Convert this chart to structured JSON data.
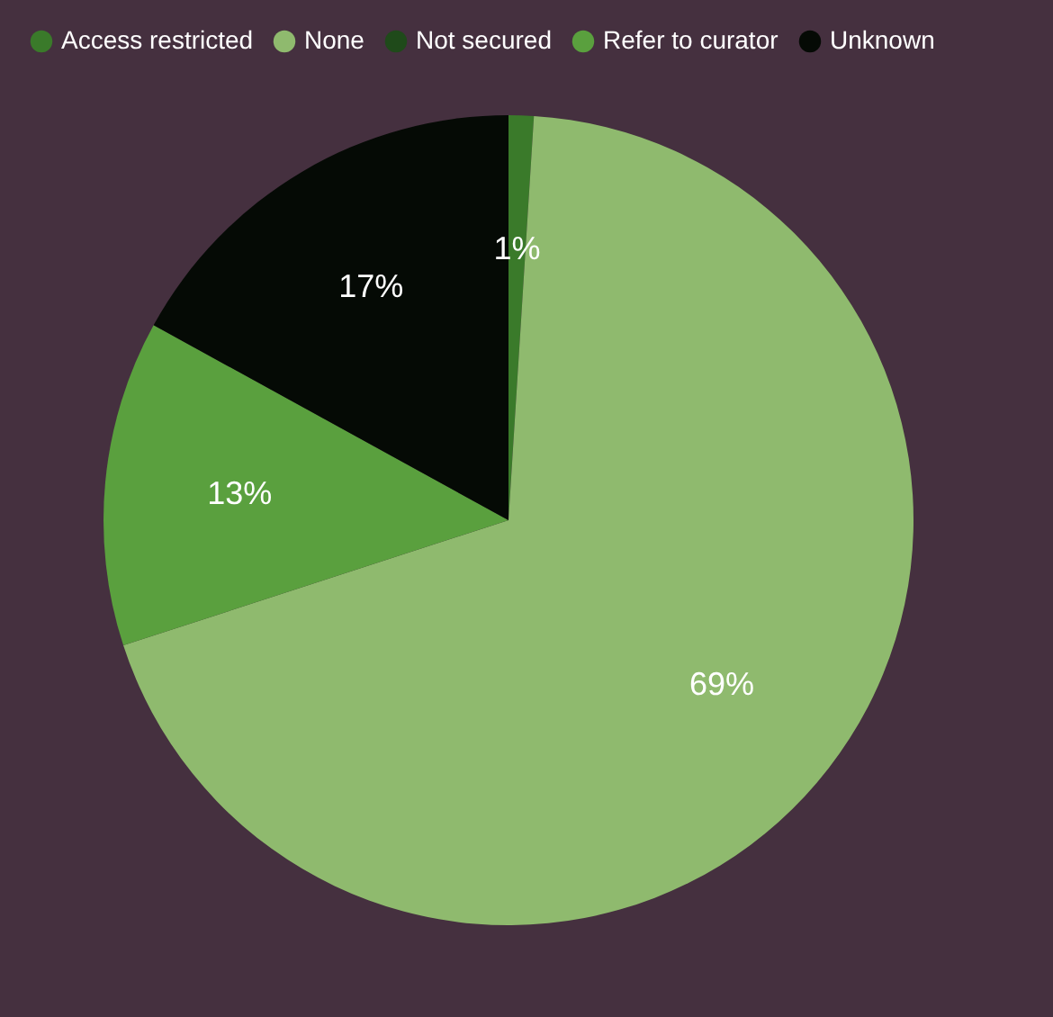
{
  "chart_data": {
    "type": "pie",
    "categories": [
      "Access restricted",
      "None",
      "Not secured",
      "Refer to curator",
      "Unknown"
    ],
    "values": [
      1,
      69,
      0,
      13,
      17
    ],
    "colors": [
      "#3a7a2a",
      "#8fba6e",
      "#1f4a1a",
      "#5aa03e",
      "#050a05"
    ],
    "value_labels": [
      "1%",
      "69%",
      null,
      "13%",
      "17%"
    ],
    "legend": "top"
  }
}
